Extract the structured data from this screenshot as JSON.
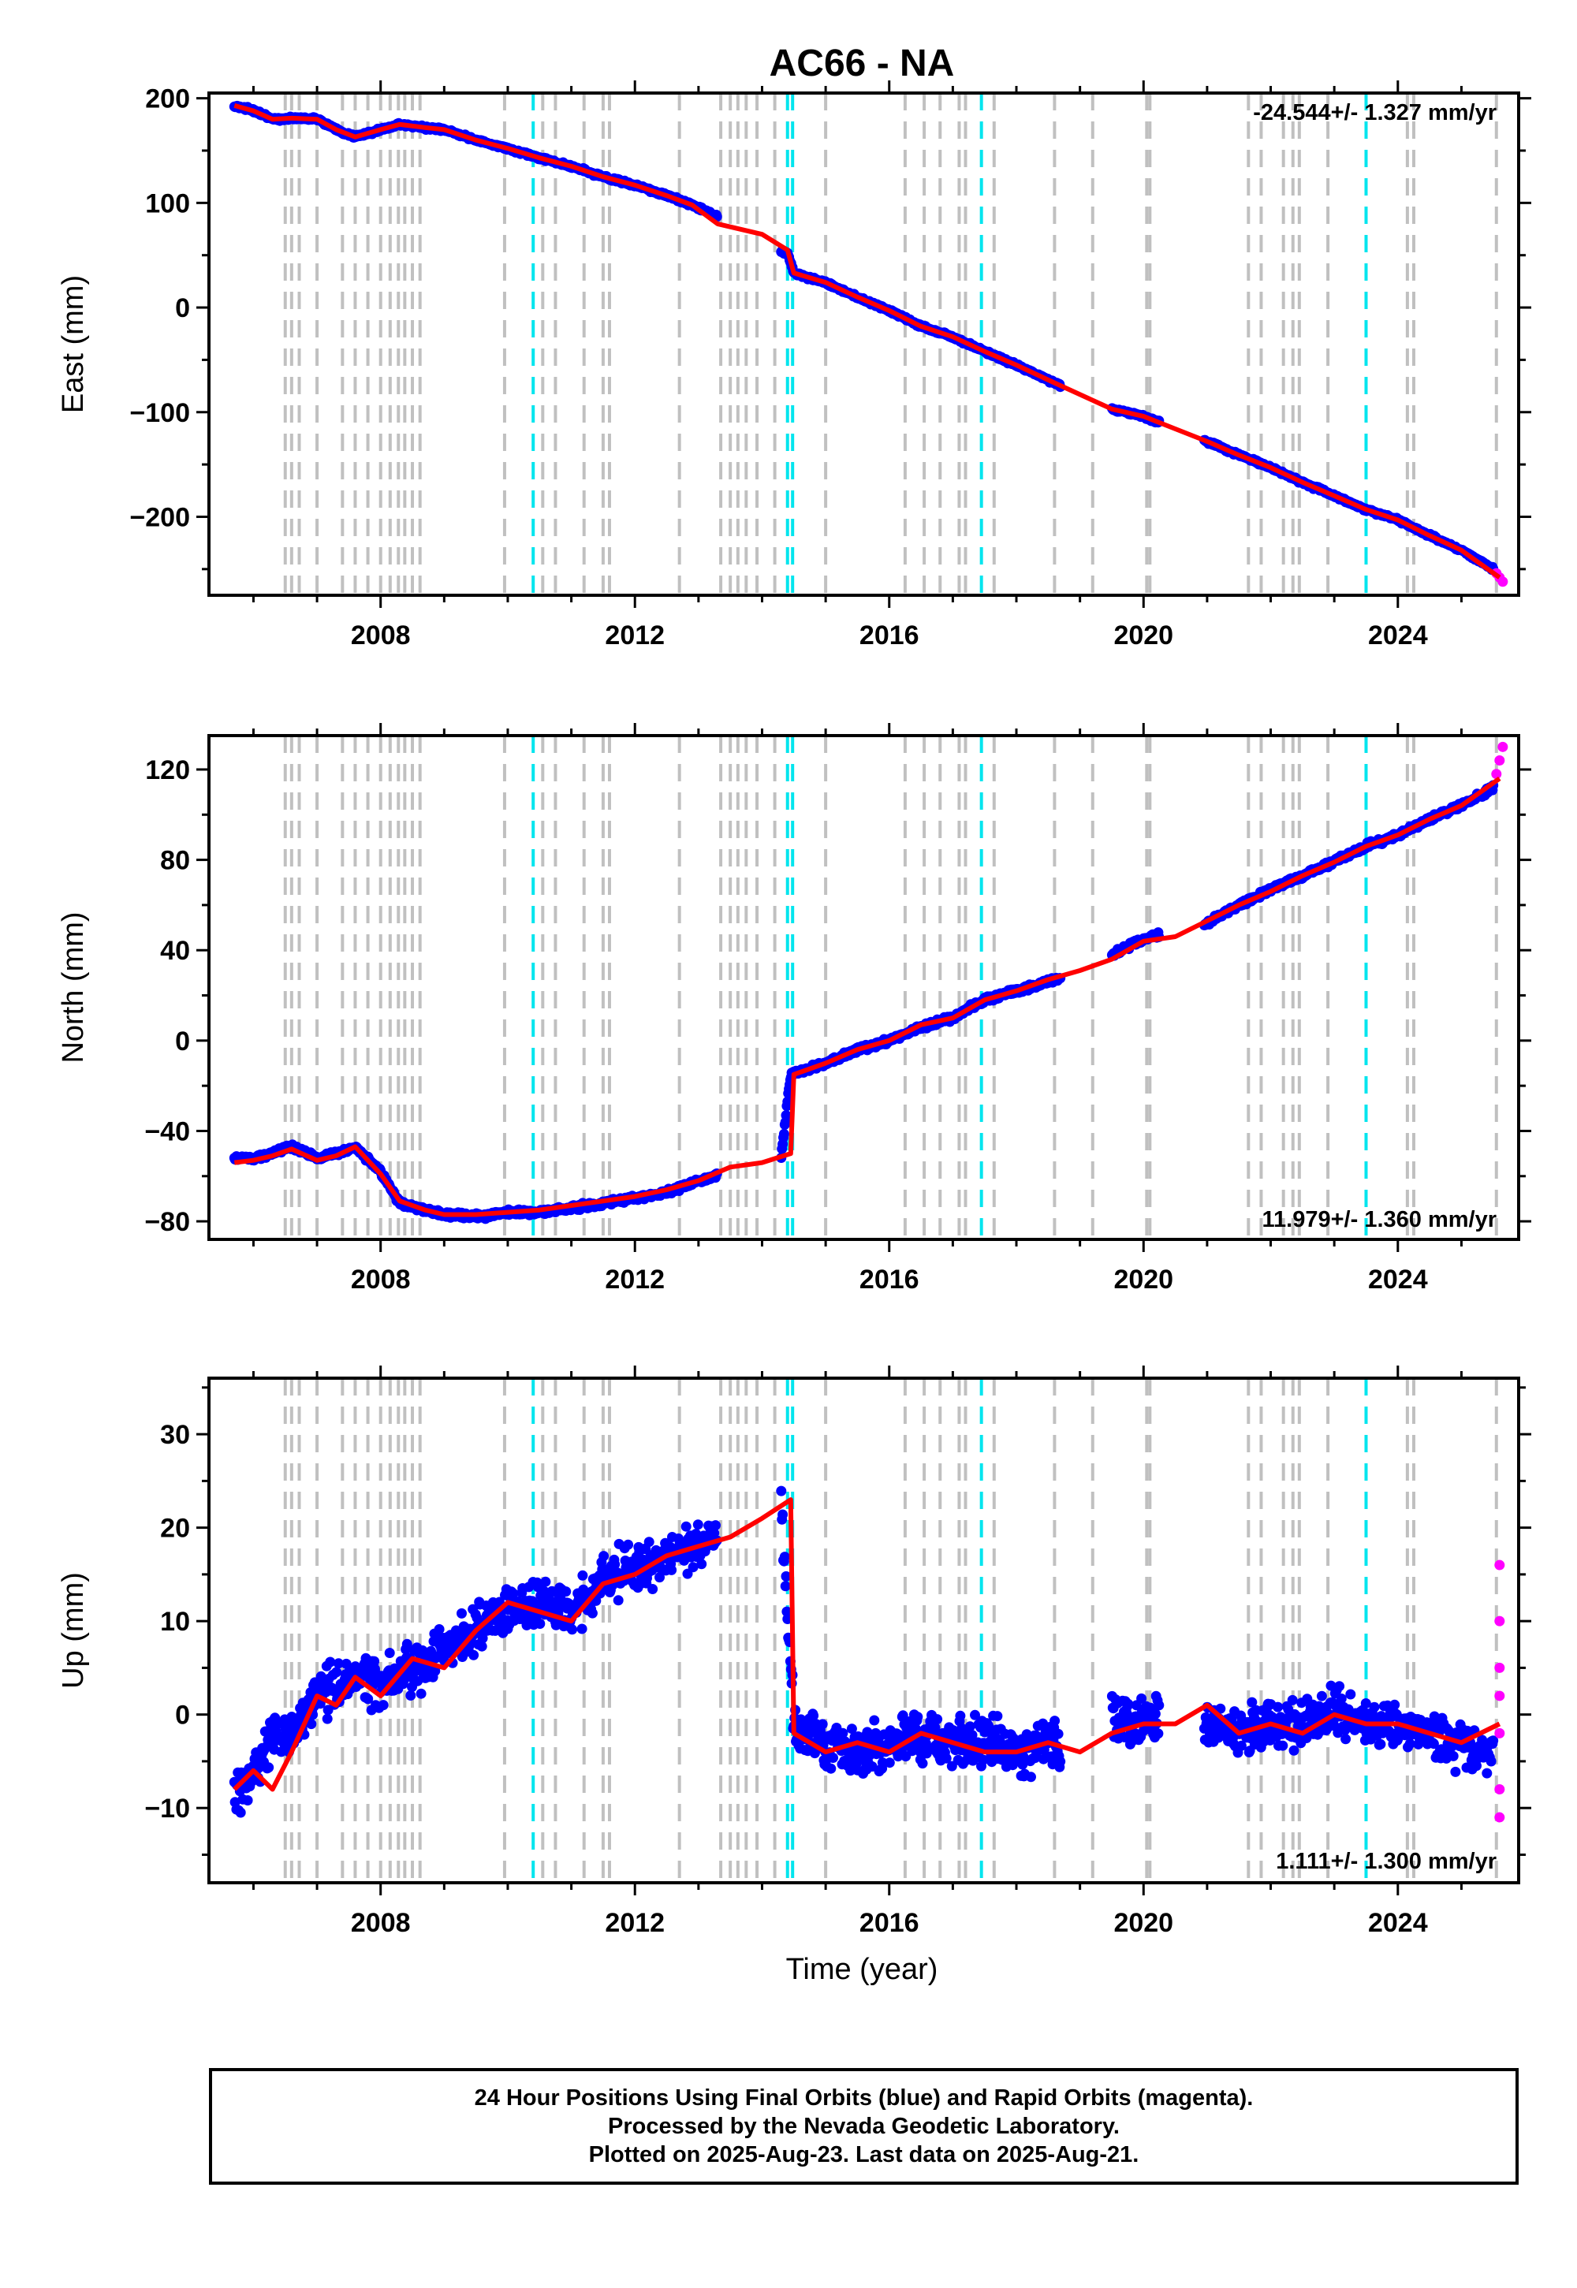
{
  "title": "AC66 - NA",
  "xlabel": "Time (year)",
  "footer": {
    "line1": "24 Hour Positions Using Final Orbits (blue) and Rapid Orbits (magenta).",
    "line2": "Processed by the Nevada Geodetic Laboratory.",
    "line3": "Plotted on 2025-Aug-23. Last data on 2025-Aug-21."
  },
  "colors": {
    "final_orbit_points": "#0000ff",
    "rapid_orbit_points": "#ff00ff",
    "model_fit": "#ff0000",
    "equipment_change_lines": "#c0c0c0",
    "earthquake_lines": "#00e5ee"
  },
  "chart_data": [
    {
      "type": "scatter",
      "ylabel": "East (mm)",
      "rate_label": "-24.544+/- 1.327 mm/yr",
      "xlim": [
        2005.3,
        2025.9
      ],
      "ylim": [
        -275,
        205
      ],
      "xticks": [
        2008,
        2012,
        2016,
        2020,
        2024
      ],
      "yticks": [
        200,
        100,
        0,
        -100,
        -200
      ],
      "ytick_labels": [
        "200",
        "100",
        "0",
        "−100",
        "−200"
      ],
      "series": [
        {
          "name": "final orbits",
          "x": [
            2005.7,
            2006.0,
            2006.3,
            2006.6,
            2007.0,
            2007.3,
            2007.6,
            2008.0,
            2008.3,
            2008.7,
            2009.0,
            2009.5,
            2010.0,
            2010.5,
            2011.0,
            2011.5,
            2012.0,
            2012.5,
            2012.9,
            2013.3,
            2014.0,
            2014.4,
            2014.5,
            2015.0,
            2015.5,
            2016.0,
            2016.5,
            2017.0,
            2017.5,
            2018.0,
            2018.6,
            2019.5,
            2020.0,
            2020.5,
            2021.0,
            2021.5,
            2022.0,
            2022.5,
            2023.0,
            2023.5,
            2024.0,
            2024.5,
            2025.0,
            2025.5
          ],
          "y": [
            193,
            188,
            180,
            181,
            180,
            170,
            163,
            170,
            175,
            172,
            170,
            160,
            152,
            143,
            135,
            125,
            117,
            107,
            98,
            87,
            60,
            52,
            33,
            24,
            10,
            -3,
            -18,
            -28,
            -42,
            -55,
            -72,
            -97,
            -104,
            -116,
            -128,
            -141,
            -153,
            -167,
            -180,
            -193,
            -203,
            -218,
            -232,
            -250
          ]
        },
        {
          "name": "rapid orbits",
          "x": [
            2025.55,
            2025.6,
            2025.65
          ],
          "y": [
            -254,
            -258,
            -262
          ]
        },
        {
          "name": "model",
          "x": [
            2005.7,
            2006.0,
            2006.3,
            2006.6,
            2007.0,
            2007.3,
            2007.6,
            2008.0,
            2008.3,
            2008.7,
            2009.0,
            2009.5,
            2010.0,
            2010.5,
            2011.0,
            2011.5,
            2012.0,
            2012.5,
            2012.9,
            2013.3,
            2014.0,
            2014.4,
            2014.5,
            2015.0,
            2015.5,
            2016.0,
            2016.5,
            2017.0,
            2017.5,
            2018.0,
            2018.6,
            2019.5,
            2020.0,
            2020.5,
            2021.0,
            2021.5,
            2022.0,
            2022.5,
            2023.0,
            2023.5,
            2024.0,
            2024.5,
            2025.0,
            2025.6
          ],
          "y": [
            193,
            188,
            180,
            181,
            180,
            170,
            163,
            170,
            175,
            172,
            170,
            160,
            152,
            143,
            135,
            125,
            117,
            107,
            98,
            80,
            70,
            55,
            33,
            24,
            10,
            -3,
            -18,
            -28,
            -42,
            -55,
            -72,
            -97,
            -104,
            -116,
            -128,
            -141,
            -153,
            -167,
            -180,
            -193,
            -203,
            -218,
            -232,
            -258
          ]
        }
      ]
    },
    {
      "type": "scatter",
      "ylabel": "North (mm)",
      "rate_label": "11.979+/- 1.360 mm/yr",
      "xlim": [
        2005.3,
        2025.9
      ],
      "ylim": [
        -88,
        135
      ],
      "xticks": [
        2008,
        2012,
        2016,
        2020,
        2024
      ],
      "yticks": [
        120,
        80,
        40,
        0,
        -40,
        -80
      ],
      "ytick_labels": [
        "120",
        "80",
        "40",
        "0",
        "−40",
        "−80"
      ],
      "series": [
        {
          "name": "final orbits",
          "x": [
            2005.7,
            2006.0,
            2006.3,
            2006.6,
            2007.0,
            2007.3,
            2007.6,
            2008.0,
            2008.3,
            2008.7,
            2009.0,
            2009.5,
            2010.0,
            2010.5,
            2011.0,
            2011.5,
            2012.0,
            2012.5,
            2013.0,
            2014.3,
            2014.45,
            2015.0,
            2015.5,
            2016.0,
            2016.5,
            2017.0,
            2017.5,
            2018.0,
            2018.5,
            2019.0,
            2019.5,
            2020.0,
            2021.0,
            2021.5,
            2022.0,
            2022.5,
            2023.0,
            2023.5,
            2024.0,
            2024.5,
            2025.0,
            2025.5
          ],
          "y": [
            -52,
            -52,
            -50,
            -47,
            -52,
            -50,
            -47,
            -58,
            -72,
            -75,
            -77,
            -78,
            -76,
            -76,
            -74,
            -72,
            -70,
            -67,
            -62,
            -52,
            -15,
            -10,
            -4,
            0,
            6,
            10,
            18,
            22,
            26,
            30,
            38,
            45,
            52,
            60,
            67,
            73,
            79,
            86,
            91,
            98,
            104,
            112
          ]
        },
        {
          "name": "rapid orbits",
          "x": [
            2025.55,
            2025.6,
            2025.65
          ],
          "y": [
            118,
            124,
            130
          ]
        },
        {
          "name": "model",
          "x": [
            2005.7,
            2006.0,
            2006.3,
            2006.6,
            2007.0,
            2007.3,
            2007.6,
            2008.0,
            2008.3,
            2008.7,
            2009.0,
            2009.5,
            2010.0,
            2010.5,
            2011.0,
            2011.5,
            2012.0,
            2012.5,
            2013.0,
            2013.5,
            2014.0,
            2014.45,
            2014.5,
            2015.0,
            2015.5,
            2016.0,
            2016.5,
            2017.0,
            2017.5,
            2018.0,
            2018.5,
            2019.0,
            2019.5,
            2020.0,
            2020.5,
            2021.0,
            2021.5,
            2022.0,
            2022.5,
            2023.0,
            2023.5,
            2024.0,
            2024.5,
            2025.0,
            2025.6
          ],
          "y": [
            -54,
            -53,
            -51,
            -48,
            -53,
            -51,
            -47,
            -59,
            -71,
            -75,
            -77,
            -77,
            -76,
            -75,
            -73,
            -71,
            -69,
            -66,
            -62,
            -56,
            -54,
            -50,
            -15,
            -10,
            -4,
            0,
            7,
            10,
            18,
            22,
            27,
            31,
            36,
            44,
            46,
            53,
            60,
            66,
            73,
            79,
            86,
            91,
            98,
            104,
            116
          ]
        }
      ]
    },
    {
      "type": "scatter",
      "ylabel": "Up (mm)",
      "rate_label": "1.111+/- 1.300 mm/yr",
      "xlim": [
        2005.3,
        2025.9
      ],
      "ylim": [
        -18,
        36
      ],
      "xticks": [
        2008,
        2012,
        2016,
        2020,
        2024
      ],
      "yticks": [
        30,
        20,
        10,
        0,
        -10
      ],
      "ytick_labels": [
        "30",
        "20",
        "10",
        "0",
        "−10"
      ],
      "series": [
        {
          "name": "final orbits",
          "x": [
            2005.7,
            2006.0,
            2006.3,
            2006.6,
            2007.0,
            2007.3,
            2007.6,
            2008.0,
            2008.5,
            2009.0,
            2009.5,
            2010.0,
            2010.5,
            2011.0,
            2011.5,
            2012.0,
            2012.5,
            2013.0,
            2014.3,
            2014.5,
            2015.0,
            2015.5,
            2016.0,
            2016.5,
            2017.0,
            2017.5,
            2018.0,
            2018.5,
            2019.5,
            2020.0,
            2021.0,
            2021.5,
            2022.0,
            2022.5,
            2023.0,
            2023.5,
            2024.0,
            2024.5,
            2025.0,
            2025.5
          ],
          "y": [
            -9,
            -6,
            -3,
            -2,
            2,
            3,
            4,
            3,
            5,
            7,
            9,
            11,
            12,
            11,
            14,
            16,
            17,
            18,
            22,
            -1,
            -3,
            -4,
            -3,
            -2,
            -3,
            -3,
            -4,
            -3,
            -1,
            0,
            -1,
            -2,
            -1,
            -1,
            0,
            -1,
            -1,
            -2,
            -3,
            -4
          ]
        },
        {
          "name": "rapid orbits",
          "x": [
            2025.6,
            2025.6,
            2025.6,
            2025.6,
            2025.6,
            2025.6,
            2025.6
          ],
          "y": [
            16,
            10,
            5,
            2,
            -2,
            -8,
            -11
          ]
        },
        {
          "name": "model",
          "x": [
            2005.7,
            2006.0,
            2006.3,
            2006.6,
            2007.0,
            2007.3,
            2007.6,
            2008.0,
            2008.5,
            2009.0,
            2009.5,
            2010.0,
            2010.5,
            2011.0,
            2011.5,
            2012.0,
            2012.5,
            2013.0,
            2013.5,
            2014.0,
            2014.45,
            2014.5,
            2015.0,
            2015.5,
            2016.0,
            2016.5,
            2017.0,
            2017.5,
            2018.0,
            2018.5,
            2019.0,
            2019.5,
            2020.0,
            2020.5,
            2021.0,
            2021.5,
            2022.0,
            2022.5,
            2023.0,
            2023.5,
            2024.0,
            2024.5,
            2025.0,
            2025.6
          ],
          "y": [
            -8,
            -6,
            -8,
            -4,
            2,
            1,
            4,
            2,
            6,
            5,
            9,
            12,
            11,
            10,
            14,
            15,
            17,
            18,
            19,
            21,
            23,
            -2,
            -4,
            -3,
            -4,
            -2,
            -3,
            -4,
            -4,
            -3,
            -4,
            -2,
            -1,
            -1,
            1,
            -2,
            -1,
            -2,
            0,
            -1,
            -1,
            -2,
            -3,
            -1
          ]
        }
      ]
    }
  ],
  "reference_lines": {
    "equipment_change_years": [
      2006.5,
      2006.6,
      2006.72,
      2007.0,
      2007.4,
      2007.6,
      2007.8,
      2008.0,
      2008.15,
      2008.28,
      2008.38,
      2008.5,
      2008.62,
      2009.95,
      2010.55,
      2010.75,
      2011.2,
      2011.5,
      2011.6,
      2012.7,
      2013.35,
      2013.5,
      2013.62,
      2013.75,
      2013.92,
      2014.2,
      2015.0,
      2016.25,
      2016.55,
      2016.8,
      2017.1,
      2017.2,
      2017.65,
      2018.6,
      2019.2,
      2020.05,
      2020.1,
      2021.65,
      2021.85,
      2022.2,
      2022.35,
      2022.45,
      2022.9,
      2024.15,
      2024.25,
      2025.55
    ],
    "earthquake_years": [
      2010.4,
      2014.4,
      2014.48,
      2017.45,
      2023.5
    ]
  }
}
